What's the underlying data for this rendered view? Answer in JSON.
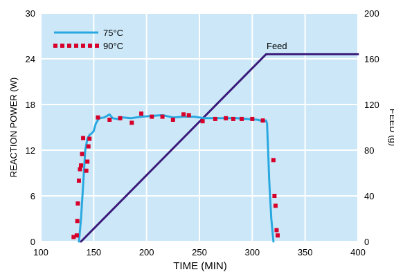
{
  "chart_data": {
    "type": "line",
    "xlabel": "TIME (MIN)",
    "ylabel_left": "REACTION POWER (W)",
    "ylabel_right": "FEED (g)",
    "xlim": [
      100,
      400
    ],
    "ylim_left": [
      0,
      30
    ],
    "ylim_right": [
      0,
      200
    ],
    "x_ticks": [
      "100",
      "150",
      "200",
      "250",
      "300",
      "350",
      "400"
    ],
    "y_left_ticks": [
      "0",
      "6",
      "12",
      "18",
      "24",
      "30"
    ],
    "y_right_ticks": [
      "0",
      "40",
      "80",
      "120",
      "160",
      "200"
    ],
    "grid": true,
    "background_color": "#cce8f8",
    "grid_color": "#ffffff",
    "legend_position": "top-left",
    "series": [
      {
        "name": "75°C",
        "style": "line",
        "color": "#29a8e0",
        "axis": "left",
        "x": [
          136,
          138,
          140,
          142,
          144,
          146,
          148,
          150,
          152,
          155,
          160,
          165,
          168,
          172,
          178,
          185,
          195,
          205,
          215,
          225,
          235,
          245,
          255,
          265,
          275,
          285,
          295,
          305,
          310,
          313,
          314,
          314.5,
          315,
          316,
          318,
          320
        ],
        "y": [
          0,
          3,
          7.5,
          12,
          13.5,
          14,
          14.2,
          14.5,
          15.5,
          16.2,
          16.3,
          16.7,
          16.2,
          16.1,
          16.3,
          16.2,
          16.4,
          16.5,
          16.6,
          16.3,
          16.4,
          16.4,
          16.2,
          16.2,
          16.2,
          16.2,
          16.1,
          16.0,
          15.8,
          15.9,
          15.5,
          13.5,
          12,
          8,
          3,
          0
        ]
      },
      {
        "name": "90°C",
        "style": "markers",
        "color": "#d6002a",
        "axis": "left",
        "x": [
          131,
          134,
          134.5,
          135,
          136,
          137,
          138,
          139,
          140,
          143,
          144,
          145,
          146,
          154,
          165,
          175,
          186,
          195,
          205,
          215,
          225,
          235,
          240,
          253,
          265,
          275,
          282,
          290,
          300,
          310,
          320,
          321,
          322,
          323,
          324
        ],
        "y": [
          0.6,
          0.8,
          2.7,
          5,
          8,
          9.5,
          10,
          11.5,
          13.6,
          9.3,
          10.5,
          12.5,
          13.5,
          16.3,
          16,
          16.2,
          15.6,
          16.8,
          16.4,
          16.4,
          16,
          16.7,
          16.6,
          15.8,
          16.1,
          16.2,
          16.1,
          16.1,
          16.1,
          15.9,
          10.7,
          6,
          4.7,
          1.5,
          0.8
        ]
      },
      {
        "name": "Feed",
        "style": "line",
        "color": "#3a1a7a",
        "axis": "right",
        "label": "Feed",
        "x": [
          138,
          313,
          400
        ],
        "y": [
          0,
          164,
          164
        ]
      }
    ]
  }
}
